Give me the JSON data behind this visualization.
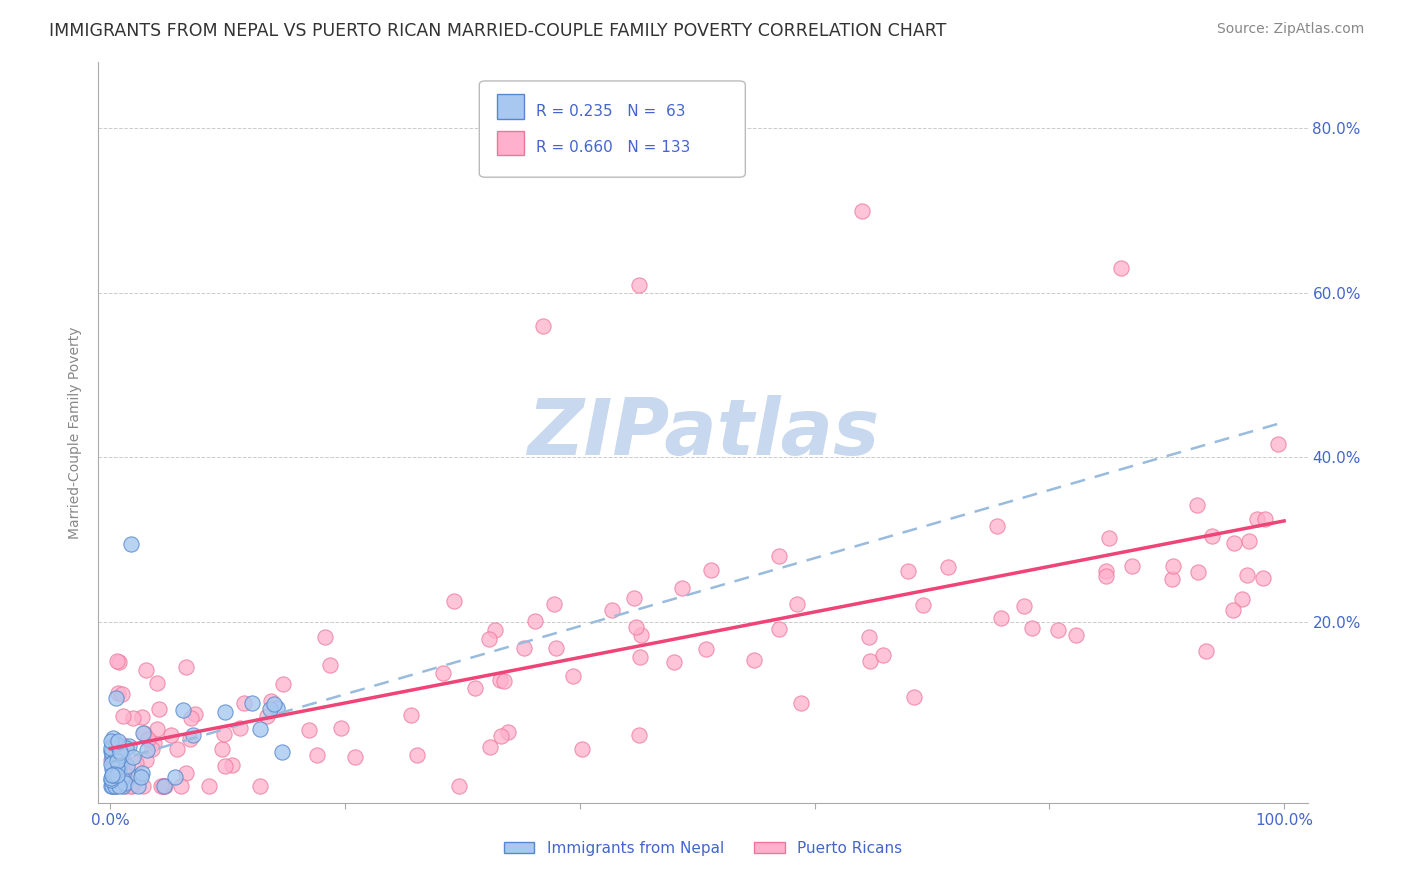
{
  "title": "IMMIGRANTS FROM NEPAL VS PUERTO RICAN MARRIED-COUPLE FAMILY POVERTY CORRELATION CHART",
  "source": "Source: ZipAtlas.com",
  "ylabel": "Married-Couple Family Poverty",
  "xlim": [
    -0.01,
    1.02
  ],
  "ylim": [
    -0.02,
    0.88
  ],
  "xtick_positions": [
    0.0,
    0.2,
    0.4,
    0.6,
    0.8,
    1.0
  ],
  "xtick_labels_bottom": [
    "0.0%",
    "",
    "",
    "",
    "",
    "100.0%"
  ],
  "ytick_positions": [
    0.0,
    0.2,
    0.4,
    0.6,
    0.8
  ],
  "ytick_labels_right": [
    "",
    "20.0%",
    "40.0%",
    "60.0%",
    "80.0%"
  ],
  "grid_color": "#cccccc",
  "background_color": "#ffffff",
  "watermark_text": "ZIPatlas",
  "watermark_color": "#c8d8ee",
  "series1_color": "#a8c8f0",
  "series1_edge": "#5588cc",
  "series2_color": "#ffb0cc",
  "series2_edge": "#ee7799",
  "series1_label": "Immigrants from Nepal",
  "series2_label": "Puerto Ricans",
  "series1_R": "0.235",
  "series1_N": "63",
  "series2_R": "0.660",
  "series2_N": "133",
  "legend_text_color": "#4466cc",
  "trendline1_color": "#99bbdd",
  "trendline2_color": "#ee4477",
  "axis_label_color": "#4466cc",
  "title_color": "#333333",
  "source_color": "#888888"
}
